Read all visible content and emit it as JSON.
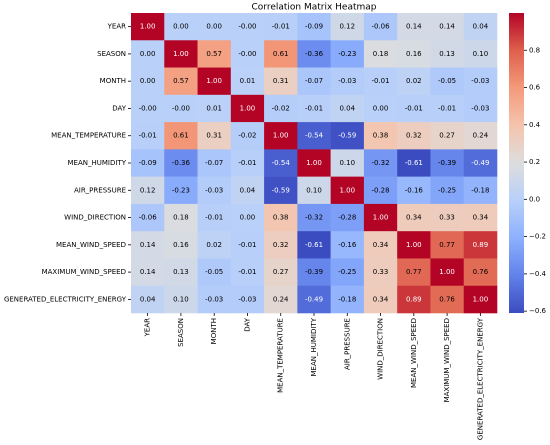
{
  "chart_data": {
    "type": "heatmap",
    "title": "Correlation Matrix Heatmap",
    "colormap": "coolwarm",
    "categories": [
      "YEAR",
      "SEASON",
      "MONTH",
      "DAY",
      "MEAN_TEMPERATURE",
      "MEAN_HUMIDITY",
      "AIR_PRESSURE",
      "WIND_DIRECTION",
      "MEAN_WIND_SPEED",
      "MAXIMUM_WIND_SPEED",
      "GENERATED_ELECTRICITY_ENERGY"
    ],
    "values": [
      [
        1,
        0,
        0,
        0,
        -0.01,
        -0.09,
        0.12,
        -0.06,
        0.14,
        0.14,
        0.04
      ],
      [
        0,
        1,
        0.57,
        0,
        0.61,
        -0.36,
        -0.23,
        0.18,
        0.16,
        0.13,
        0.1
      ],
      [
        0,
        0.57,
        1,
        0.01,
        0.31,
        -0.07,
        -0.03,
        -0.01,
        0.02,
        -0.05,
        -0.03
      ],
      [
        0,
        0,
        0.01,
        1,
        -0.02,
        -0.01,
        0.04,
        0,
        -0.01,
        -0.01,
        -0.03
      ],
      [
        -0.01,
        0.61,
        0.31,
        -0.02,
        1,
        -0.54,
        -0.59,
        0.38,
        0.32,
        0.27,
        0.24
      ],
      [
        -0.09,
        -0.36,
        -0.07,
        -0.01,
        -0.54,
        1,
        0.1,
        -0.32,
        -0.61,
        -0.39,
        -0.49
      ],
      [
        0.12,
        -0.23,
        -0.03,
        0.04,
        -0.59,
        0.1,
        1,
        -0.28,
        -0.16,
        -0.25,
        -0.18
      ],
      [
        -0.06,
        0.18,
        -0.01,
        0,
        0.38,
        -0.32,
        -0.28,
        1,
        0.34,
        0.33,
        0.34
      ],
      [
        0.14,
        0.16,
        0.02,
        -0.01,
        0.32,
        -0.61,
        -0.16,
        0.34,
        1,
        0.77,
        0.89
      ],
      [
        0.14,
        0.13,
        -0.05,
        -0.01,
        0.27,
        -0.39,
        -0.25,
        0.33,
        0.77,
        1,
        0.76
      ],
      [
        0.04,
        0.1,
        -0.03,
        -0.03,
        0.24,
        -0.49,
        -0.18,
        0.34,
        0.89,
        0.76,
        1
      ]
    ],
    "value_labels": [
      [
        "1.00",
        "0.00",
        "0.00",
        "-0.00",
        "-0.01",
        "-0.09",
        "0.12",
        "-0.06",
        "0.14",
        "0.14",
        "0.04"
      ],
      [
        "0.00",
        "1.00",
        "0.57",
        "-0.00",
        "0.61",
        "-0.36",
        "-0.23",
        "0.18",
        "0.16",
        "0.13",
        "0.10"
      ],
      [
        "0.00",
        "0.57",
        "1.00",
        "0.01",
        "0.31",
        "-0.07",
        "-0.03",
        "-0.01",
        "0.02",
        "-0.05",
        "-0.03"
      ],
      [
        "-0.00",
        "-0.00",
        "0.01",
        "1.00",
        "-0.02",
        "-0.01",
        "0.04",
        "0.00",
        "-0.01",
        "-0.01",
        "-0.03"
      ],
      [
        "-0.01",
        "0.61",
        "0.31",
        "-0.02",
        "1.00",
        "-0.54",
        "-0.59",
        "0.38",
        "0.32",
        "0.27",
        "0.24"
      ],
      [
        "-0.09",
        "-0.36",
        "-0.07",
        "-0.01",
        "-0.54",
        "1.00",
        "0.10",
        "-0.32",
        "-0.61",
        "-0.39",
        "-0.49"
      ],
      [
        "0.12",
        "-0.23",
        "-0.03",
        "0.04",
        "-0.59",
        "0.10",
        "1.00",
        "-0.28",
        "-0.16",
        "-0.25",
        "-0.18"
      ],
      [
        "-0.06",
        "0.18",
        "-0.01",
        "0.00",
        "0.38",
        "-0.32",
        "-0.28",
        "1.00",
        "0.34",
        "0.33",
        "0.34"
      ],
      [
        "0.14",
        "0.16",
        "0.02",
        "-0.01",
        "0.32",
        "-0.61",
        "-0.16",
        "0.34",
        "1.00",
        "0.77",
        "0.89"
      ],
      [
        "0.14",
        "0.13",
        "-0.05",
        "-0.01",
        "0.27",
        "-0.39",
        "-0.25",
        "0.33",
        "0.77",
        "1.00",
        "0.76"
      ],
      [
        "0.04",
        "0.10",
        "-0.03",
        "-0.03",
        "0.24",
        "-0.49",
        "-0.18",
        "0.34",
        "0.89",
        "0.76",
        "1.00"
      ]
    ],
    "clim": [
      -0.61,
      1
    ],
    "cticks": [
      {
        "value": -0.6,
        "label": "−0.6"
      },
      {
        "value": -0.4,
        "label": "−0.4"
      },
      {
        "value": -0.2,
        "label": "−0.2"
      },
      {
        "value": 0,
        "label": "0.0"
      },
      0.2,
      0.4,
      0.6,
      0.8
    ]
  }
}
